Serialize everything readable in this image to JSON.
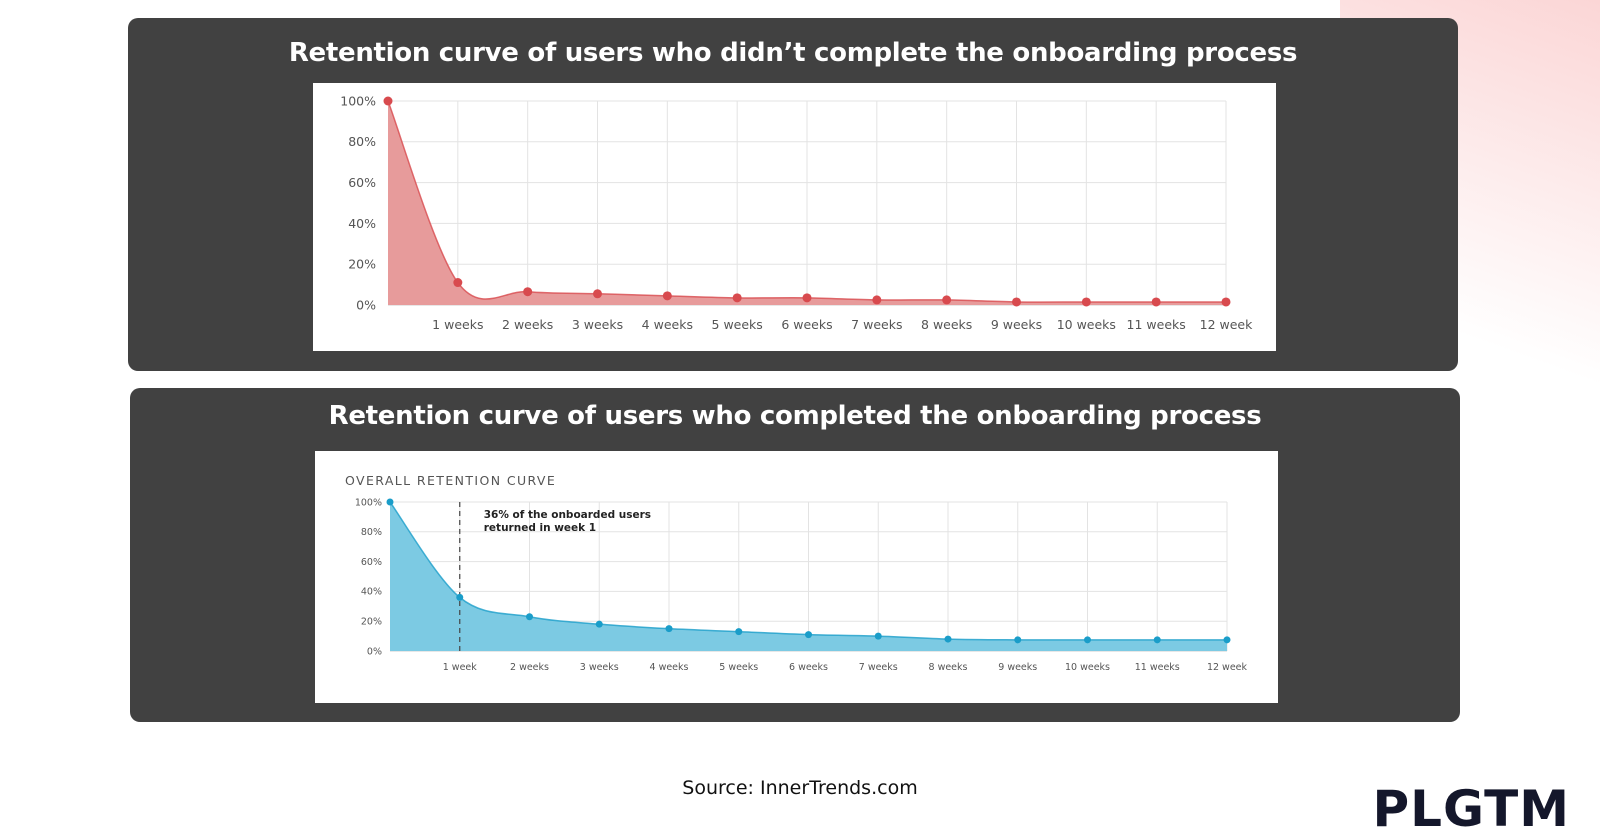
{
  "chart_data": [
    {
      "type": "area",
      "title": "Retention curve of users who didn’t complete the onboarding process",
      "subtitle": "",
      "color": "#d84a4e",
      "fill_color": "#e79b9b",
      "categories": [
        "",
        "1 weeks",
        "2 weeks",
        "3 weeks",
        "4 weeks",
        "5 weeks",
        "6 weeks",
        "7 weeks",
        "8 weeks",
        "9 weeks",
        "10 weeks",
        "11 weeks",
        "12 week"
      ],
      "values": [
        100,
        11,
        6.5,
        5.5,
        4.5,
        3.5,
        3.5,
        2.5,
        2.5,
        1.5,
        1.5,
        1.5,
        1.5
      ],
      "y_ticks": [
        "0%",
        "20%",
        "40%",
        "60%",
        "80%",
        "100%"
      ],
      "ylim": [
        0,
        100
      ],
      "grid": true,
      "annotation": ""
    },
    {
      "type": "area",
      "title": "Retention curve of users who completed the onboarding process",
      "subtitle": "OVERALL RETENTION CURVE",
      "color": "#1a9dc9",
      "fill_color": "#7ccae3",
      "categories": [
        "",
        "1 week",
        "2 weeks",
        "3 weeks",
        "4 weeks",
        "5 weeks",
        "6 weeks",
        "7 weeks",
        "8 weeks",
        "9 weeks",
        "10 weeks",
        "11 weeks",
        "12 week"
      ],
      "values": [
        100,
        36,
        23,
        18,
        15,
        13,
        11,
        10,
        8,
        7.5,
        7.5,
        7.5,
        7.5
      ],
      "y_ticks": [
        "0%",
        "20%",
        "40%",
        "60%",
        "80%",
        "100%"
      ],
      "ylim": [
        0,
        100
      ],
      "grid": true,
      "annotation": [
        "36% of the onboarded users",
        "returned in week 1"
      ]
    }
  ],
  "footer": {
    "source": "Source: InnerTrends.com",
    "logo": "PLGTM"
  }
}
